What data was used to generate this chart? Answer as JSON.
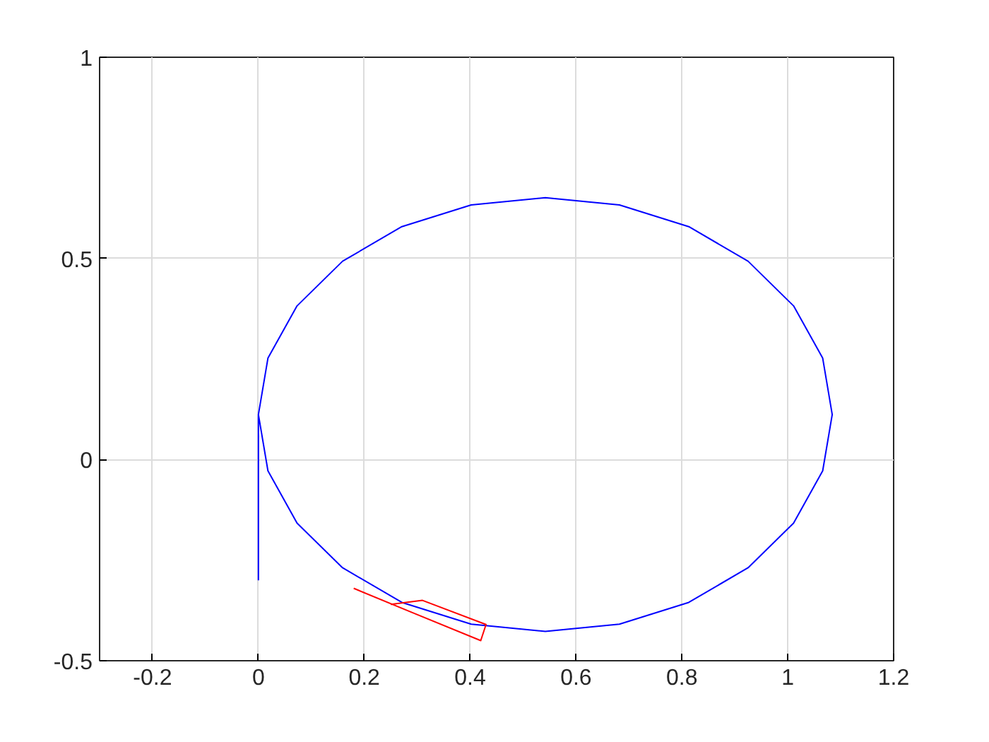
{
  "chart_data": {
    "type": "line",
    "xlim": [
      -0.3,
      1.2
    ],
    "xticks": [
      -0.2,
      0,
      0.2,
      0.4,
      0.6,
      0.8,
      1,
      1.2
    ],
    "ylim": [
      -0.5,
      1
    ],
    "yticks": [
      -0.5,
      0,
      0.5,
      1
    ],
    "grid": true,
    "marker": "none",
    "line_style": "solid",
    "series": [
      {
        "color": "#0000ff",
        "x": [
          0.0,
          0.0,
          0.018,
          0.073,
          0.159,
          0.271,
          0.402,
          0.542,
          0.682,
          0.813,
          0.925,
          1.011,
          1.066,
          1.084,
          1.066,
          1.011,
          0.925,
          0.813,
          0.682,
          0.542,
          0.402,
          0.271,
          0.159,
          0.073,
          0.018,
          0.0
        ],
        "values": [
          -0.3,
          0.112,
          0.252,
          0.382,
          0.493,
          0.579,
          0.633,
          0.651,
          0.633,
          0.579,
          0.493,
          0.382,
          0.252,
          0.112,
          -0.028,
          -0.158,
          -0.269,
          -0.355,
          -0.409,
          -0.427,
          -0.409,
          -0.355,
          -0.269,
          -0.158,
          -0.028,
          0.112
        ]
      },
      {
        "color": "#ff0000",
        "x": [
          0.18,
          0.29,
          0.42,
          0.43,
          0.31,
          0.25
        ],
        "values": [
          -0.32,
          -0.38,
          -0.45,
          -0.41,
          -0.35,
          -0.36
        ]
      }
    ]
  }
}
